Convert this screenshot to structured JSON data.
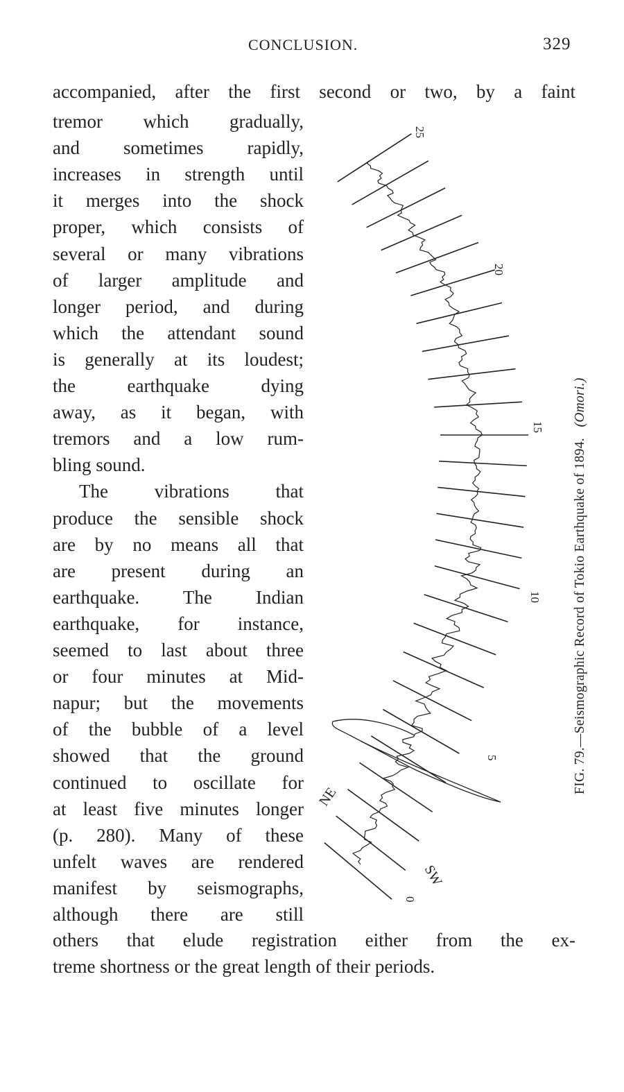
{
  "header": {
    "running_title": "CONCLUSION.",
    "page_number": "329"
  },
  "body": {
    "lead_line": "accompanied, after the first second or two, by a faint",
    "column_lines": [
      "tremor which gradually,",
      "and sometimes rapidly,",
      "increases in strength until",
      "it merges into the shock",
      "proper, which consists of",
      "several or many vibrations",
      "of larger amplitude and",
      "longer period, and during",
      "which the attendant sound",
      "is generally at its loudest;",
      "the earthquake dying",
      "away, as it began, with",
      "tremors and a low rum-",
      "bling sound.",
      "The vibrations that",
      "produce the sensible shock",
      "are by no means all that",
      "are present during an",
      "earthquake. The Indian",
      "earthquake, for instance,",
      "seemed to last about three",
      "or four minutes at Mid-",
      "napur; but the movements",
      "of the bubble of a level",
      "showed that the ground",
      "continued to oscillate for",
      "at least five minutes longer",
      "(p. 280). Many of these",
      "unfelt waves are rendered",
      "manifest by seismographs,",
      "although there are still"
    ],
    "tail_lines": [
      "others that elude registration either from the ex-",
      "treme shortness or the great length of their periods."
    ]
  },
  "figure": {
    "caption": "FIG. 79.—Seismographic Record of Tokio Earthquake of 1894.",
    "credit": "(Omori.)",
    "second_labels": [
      "25",
      "20",
      "15",
      "10",
      "5",
      "0"
    ],
    "direction_labels": {
      "ne": "NE",
      "sw": "SW"
    }
  }
}
